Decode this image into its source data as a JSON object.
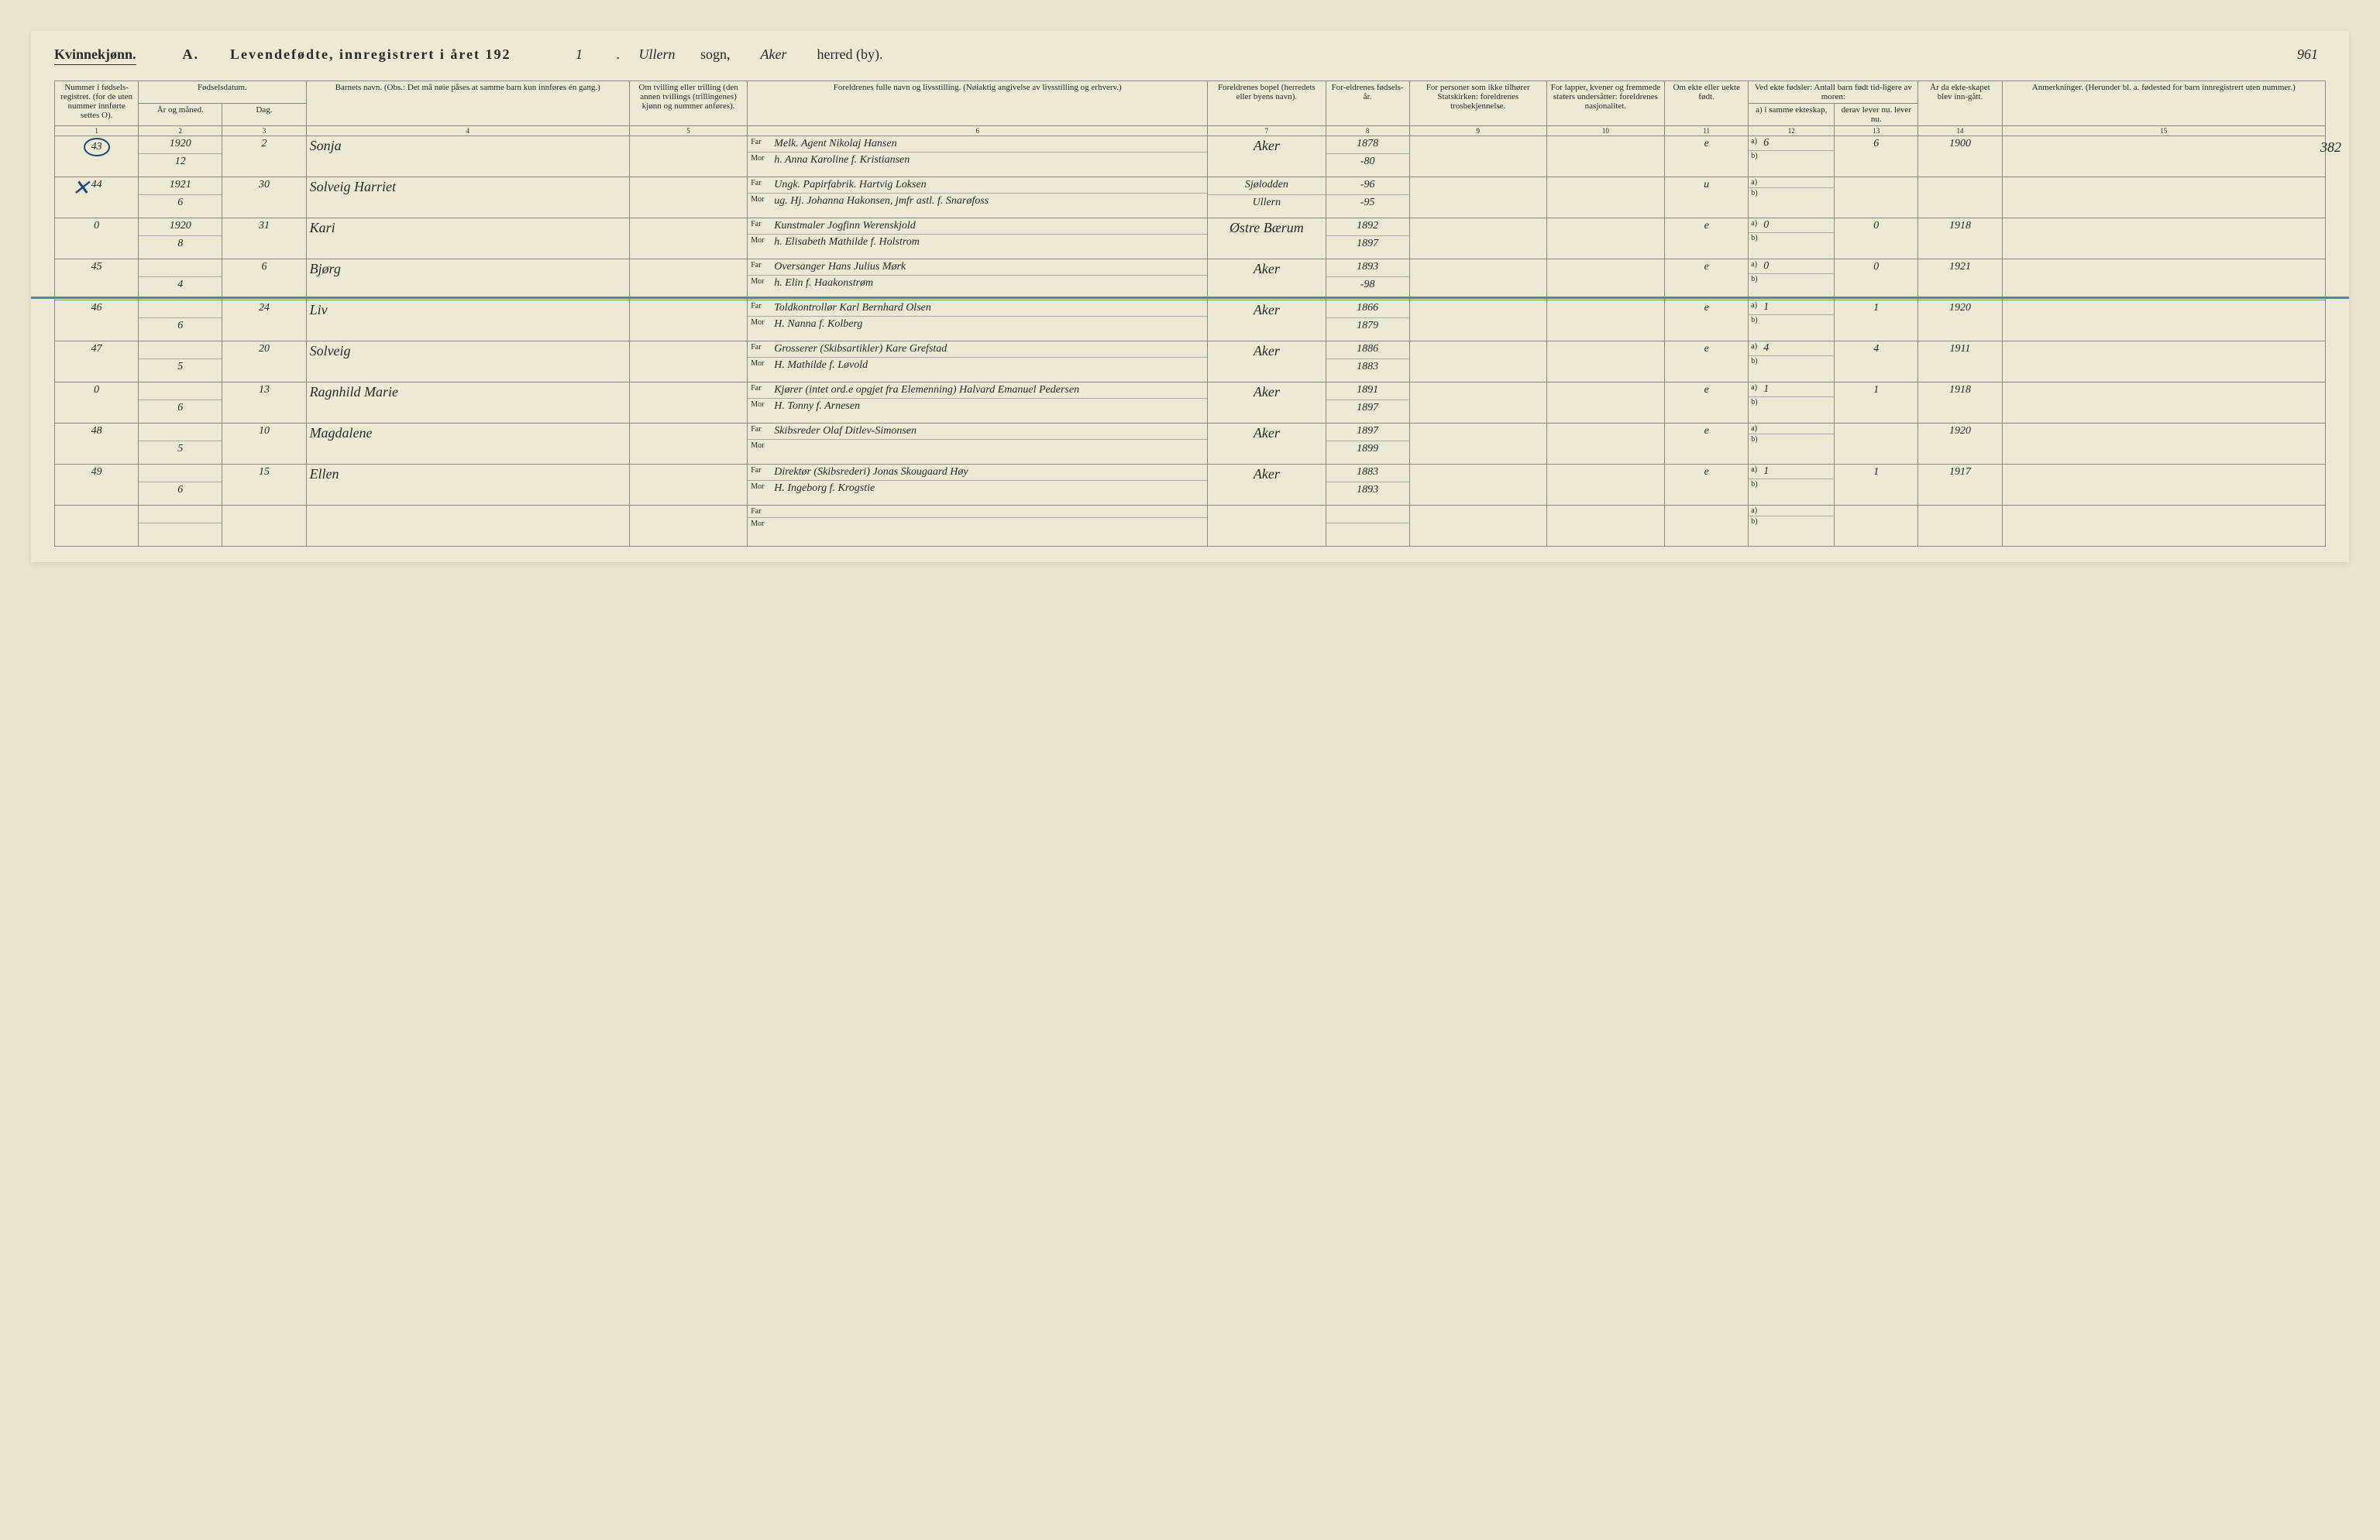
{
  "header": {
    "gender_label": "Kvinnekjønn.",
    "title_prefix": "A.",
    "title": "Levendefødte, innregistrert i året 192",
    "year_suffix": "1",
    "sogn_value": "Ullern",
    "sogn_label": "sogn,",
    "herred_value": "Aker",
    "herred_label": "herred (by).",
    "page_number": "961",
    "side_number": "382"
  },
  "column_headers": {
    "c1": "Nummer i fødsels-registret. (for de uten nummer innførte settes O).",
    "c2_top": "Fødselsdatum.",
    "c2a": "År og måned.",
    "c2b": "Dag.",
    "c3": "Barnets navn. (Obs.: Det må nøie påses at samme barn kun innføres én gang.)",
    "c4": "Om tvilling eller trilling (den annen tvillings (trillingenes) kjønn og nummer anføres).",
    "c5": "Foreldrenes fulle navn og livsstilling. (Nøiaktig angivelse av livsstilling og erhverv.)",
    "c6": "Foreldrenes bopel (herredets eller byens navn).",
    "c7": "For-eldrenes fødsels-år.",
    "c8": "For personer som ikke tilhører Statskirken: foreldrenes trosbekjennelse.",
    "c9": "For lapper, kvener og fremmede staters undersåtter: foreldrenes nasjonalitet.",
    "c10": "Om ekte eller uekte født.",
    "c11_top": "Ved ekte fødsler: Antall barn født tid-ligere av moren:",
    "c11a": "a) i samme ekteskap,",
    "c11b": "b) i tidligere ekteskap.",
    "c12": "derav lever nu. lever nu.",
    "c13": "År da ekte-skapet blev inn-gått.",
    "c14": "Anmerkninger. (Herunder bl. a. fødested for barn innregistrert uten nummer.)"
  },
  "col_numbers": [
    "1",
    "2",
    "3",
    "4",
    "5",
    "6",
    "7",
    "8",
    "9",
    "10",
    "11",
    "12",
    "13",
    "14",
    "15"
  ],
  "parent_labels": {
    "far": "Far",
    "mor": "Mor"
  },
  "ab_labels": {
    "a": "a)",
    "b": "b)"
  },
  "rows": [
    {
      "num": "43",
      "circled": true,
      "year_month_top": "1920",
      "year_month": "12",
      "day": "2",
      "child_name": "Sonja",
      "far": "Melk. Agent Nikolaj Hansen",
      "mor": "h. Anna Karoline f. Kristiansen",
      "bopel": "Aker",
      "far_year": "1878",
      "mor_year": "-80",
      "ekte": "e",
      "a_val": "6",
      "b_val": "",
      "c12": "6",
      "ekteskap_year": "1900"
    },
    {
      "num": "44",
      "x_mark": true,
      "year_month_top": "1921",
      "year_month": "6",
      "day": "30",
      "child_name": "Solveig Harriet",
      "far": "Ungk. Papirfabrik. Hartvig Loksen",
      "mor": "ug. Hj. Johanna Hakonsen, jmfr astl. f. Snarøfoss",
      "bopel": "Sjølodden",
      "bopel2": "Ullern",
      "far_year": "-96",
      "mor_year": "-95",
      "ekte": "u",
      "a_val": "",
      "b_val": "",
      "c12": "",
      "ekteskap_year": ""
    },
    {
      "num": "0",
      "year_month_top": "1920",
      "year_month": "8",
      "day": "31",
      "child_name": "Kari",
      "far": "Kunstmaler Jogfinn Werenskjold",
      "mor": "h. Elisabeth Mathilde f. Holstrom",
      "bopel": "Østre Bærum",
      "far_year": "1892",
      "mor_year": "1897",
      "ekte": "e",
      "a_val": "0",
      "b_val": "",
      "c12": "0",
      "ekteskap_year": "1918",
      "blue_line": true
    },
    {
      "num": "45",
      "year_month_top": "",
      "year_month": "4",
      "day": "6",
      "child_name": "Bjørg",
      "far": "Oversanger Hans Julius Mørk",
      "mor": "h. Elin f. Haakonstrøm",
      "bopel": "Aker",
      "far_year": "1893",
      "mor_year": "-98",
      "ekte": "e",
      "a_val": "0",
      "b_val": "",
      "c12": "0",
      "ekteskap_year": "1921"
    },
    {
      "num": "46",
      "year_month_top": "",
      "year_month": "6",
      "day": "24",
      "child_name": "Liv",
      "far": "Toldkontrollør Karl Bernhard Olsen",
      "mor": "H. Nanna f. Kolberg",
      "bopel": "Aker",
      "far_year": "1866",
      "mor_year": "1879",
      "ekte": "e",
      "a_val": "1",
      "b_val": "",
      "c12": "1",
      "ekteskap_year": "1920"
    },
    {
      "num": "47",
      "year_month_top": "",
      "year_month": "5",
      "day": "20",
      "child_name": "Solveig",
      "far": "Grosserer (Skibsartikler) Kare Grefstad",
      "mor": "H. Mathilde f. Løvold",
      "bopel": "Aker",
      "far_year": "1886",
      "mor_year": "1883",
      "ekte": "e",
      "a_val": "4",
      "b_val": "",
      "c12": "4",
      "ekteskap_year": "1911"
    },
    {
      "num": "0",
      "year_month_top": "",
      "year_month": "6",
      "day": "13",
      "child_name": "Ragnhild Marie",
      "far": "Kjører (intet ord.e opgjet fra Elemenning) Halvard Emanuel Pedersen",
      "mor": "H. Tonny f. Arnesen",
      "bopel": "Aker",
      "far_year": "1891",
      "mor_year": "1897",
      "ekte": "e",
      "a_val": "1",
      "b_val": "",
      "c12": "1",
      "ekteskap_year": "1918",
      "blue_line": true
    },
    {
      "num": "48",
      "year_month_top": "",
      "year_month": "5",
      "day": "10",
      "child_name": "Magdalene",
      "far": "Skibsreder Olaf Ditlev-Simonsen",
      "mor": "",
      "bopel": "Aker",
      "far_year": "1897",
      "mor_year": "1899",
      "ekte": "e",
      "a_val": "",
      "b_val": "",
      "c12": "",
      "ekteskap_year": "1920"
    },
    {
      "num": "49",
      "year_month_top": "",
      "year_month": "6",
      "day": "15",
      "child_name": "Ellen",
      "far": "Direktør (Skibsrederi) Jonas Skougaard Høy",
      "mor": "H. Ingeborg f. Krogstie",
      "bopel": "Aker",
      "far_year": "1883",
      "mor_year": "1893",
      "ekte": "e",
      "a_val": "1",
      "b_val": "",
      "c12": "1",
      "ekteskap_year": "1917"
    },
    {
      "num": "",
      "year_month_top": "",
      "year_month": "",
      "day": "",
      "child_name": "",
      "far": "",
      "mor": "",
      "bopel": "",
      "far_year": "",
      "mor_year": "",
      "ekte": "",
      "a_val": "",
      "b_val": "",
      "c12": "",
      "ekteskap_year": ""
    }
  ]
}
